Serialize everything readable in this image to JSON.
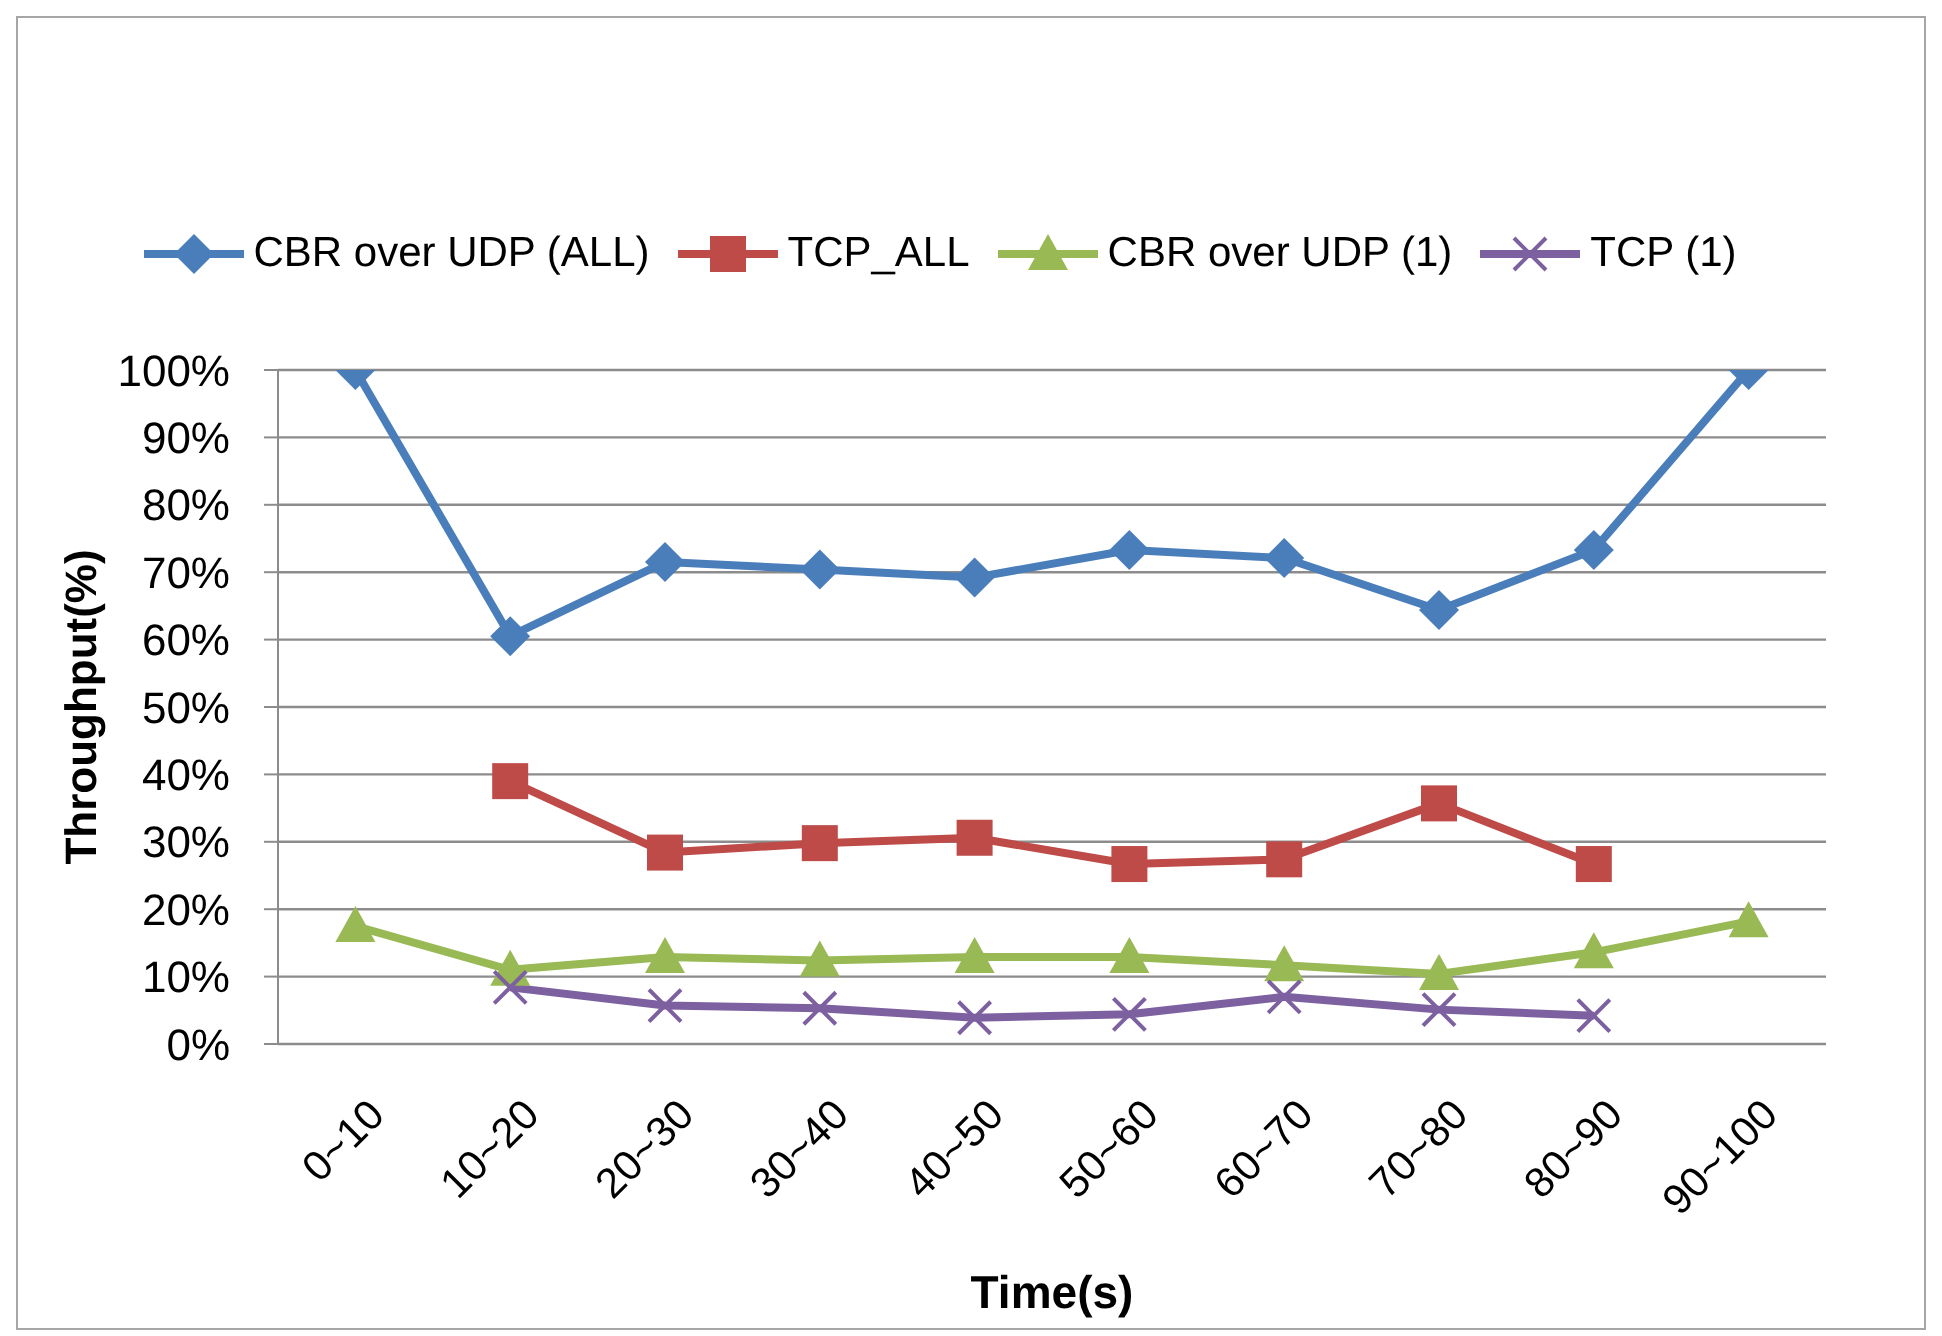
{
  "chart_data": {
    "type": "line",
    "xlabel": "Time(s)",
    "ylabel": "Throughput(%)",
    "categories": [
      "0~10",
      "10~20",
      "20~30",
      "30~40",
      "40~50",
      "50~60",
      "60~70",
      "70~80",
      "80~90",
      "90~100"
    ],
    "ylim": [
      0,
      100
    ],
    "yticks": [
      {
        "value": 0,
        "label": "0%"
      },
      {
        "value": 10,
        "label": "10%"
      },
      {
        "value": 20,
        "label": "20%"
      },
      {
        "value": 30,
        "label": "30%"
      },
      {
        "value": 40,
        "label": "40%"
      },
      {
        "value": 50,
        "label": "50%"
      },
      {
        "value": 60,
        "label": "60%"
      },
      {
        "value": 70,
        "label": "70%"
      },
      {
        "value": 80,
        "label": "80%"
      },
      {
        "value": 90,
        "label": "90%"
      },
      {
        "value": 100,
        "label": "100%"
      }
    ],
    "grid": "y",
    "legend": "top",
    "line_style": "solid",
    "series": [
      {
        "name": "CBR over UDP (ALL)",
        "color": "#4a7ebb",
        "marker": "diamond",
        "values": [
          100,
          60.5,
          71.5,
          70.4,
          69.2,
          73.3,
          72.1,
          64.4,
          73.3,
          100
        ]
      },
      {
        "name": "TCP_ALL",
        "color": "#be4b48",
        "marker": "square",
        "values": [
          null,
          39,
          28.4,
          29.8,
          30.6,
          26.7,
          27.4,
          35.7,
          26.7,
          null
        ]
      },
      {
        "name": "CBR over UDP (1)",
        "color": "#98b954",
        "marker": "triangle",
        "values": [
          17.5,
          11,
          12.9,
          12.4,
          12.9,
          12.9,
          11.7,
          10.4,
          13.6,
          18.2
        ]
      },
      {
        "name": "TCP (1)",
        "color": "#7d60a0",
        "marker": "cross",
        "values": [
          null,
          8.4,
          5.7,
          5.3,
          3.9,
          4.4,
          7,
          5.1,
          4.2,
          null
        ]
      }
    ]
  }
}
